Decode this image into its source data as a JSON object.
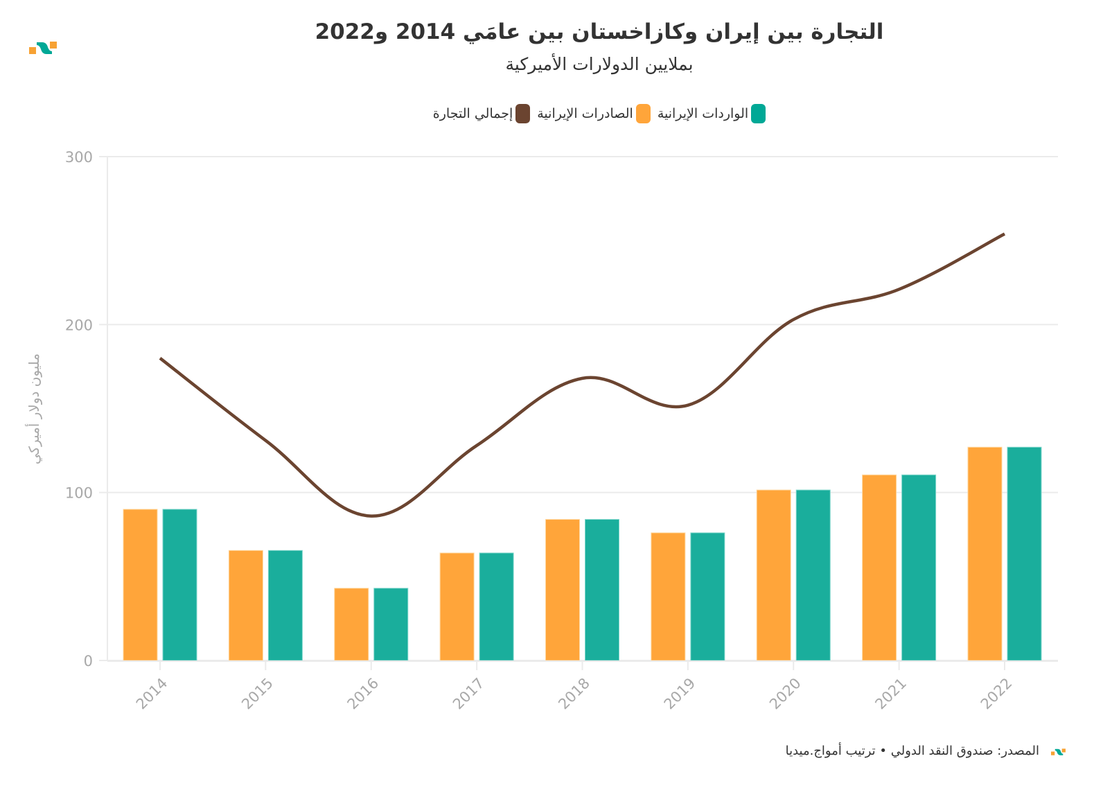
{
  "header": {
    "title": "التجارة بين إيران وكازاخستان بين عامَي 2014 و2022",
    "subtitle": "بملايين الدولارات الأميركية",
    "logo_icon": "amwaj-logo-icon"
  },
  "legend": [
    {
      "label": "الواردات الإيرانية",
      "color": "#00a896"
    },
    {
      "label": "الصادرات الإيرانية",
      "color": "#ffa53a"
    },
    {
      "label": "إجمالي التجارة",
      "color": "#6b4430"
    }
  ],
  "footer": {
    "source": "المصدر: صندوق النقد الدولي • ترتيب أمواج.ميديا",
    "logo_icon": "amwaj-logo-icon"
  },
  "chart_data": {
    "type": "bar",
    "title": "التجارة بين إيران وكازاخستان بين عامَي 2014 و2022",
    "subtitle": "بملايين الدولارات الأميركية",
    "xlabel": "",
    "ylabel": "مليون دولار أميركي",
    "ylim": [
      0,
      300
    ],
    "yticks": [
      "0",
      "100",
      "200",
      "300"
    ],
    "ytick_values": [
      0,
      100,
      200,
      300
    ],
    "grid": true,
    "legend_position": "top",
    "categories": [
      "2014",
      "2015",
      "2016",
      "2017",
      "2018",
      "2019",
      "2020",
      "2021",
      "2022"
    ],
    "series": [
      {
        "name": "الصادرات الإيرانية",
        "type": "bar",
        "color": "#ffa53a",
        "values": [
          90,
          65.5,
          43,
          64,
          84,
          76,
          101.5,
          110.5,
          127
        ]
      },
      {
        "name": "الواردات الإيرانية",
        "type": "bar",
        "color": "#1aae9c",
        "values": [
          90,
          65.5,
          43,
          64,
          84,
          76,
          101.5,
          110.5,
          127
        ]
      },
      {
        "name": "إجمالي التجارة",
        "type": "line",
        "color": "#6b4430",
        "values": [
          180,
          131,
          86,
          128,
          168,
          152,
          203,
          221,
          254
        ]
      }
    ]
  }
}
